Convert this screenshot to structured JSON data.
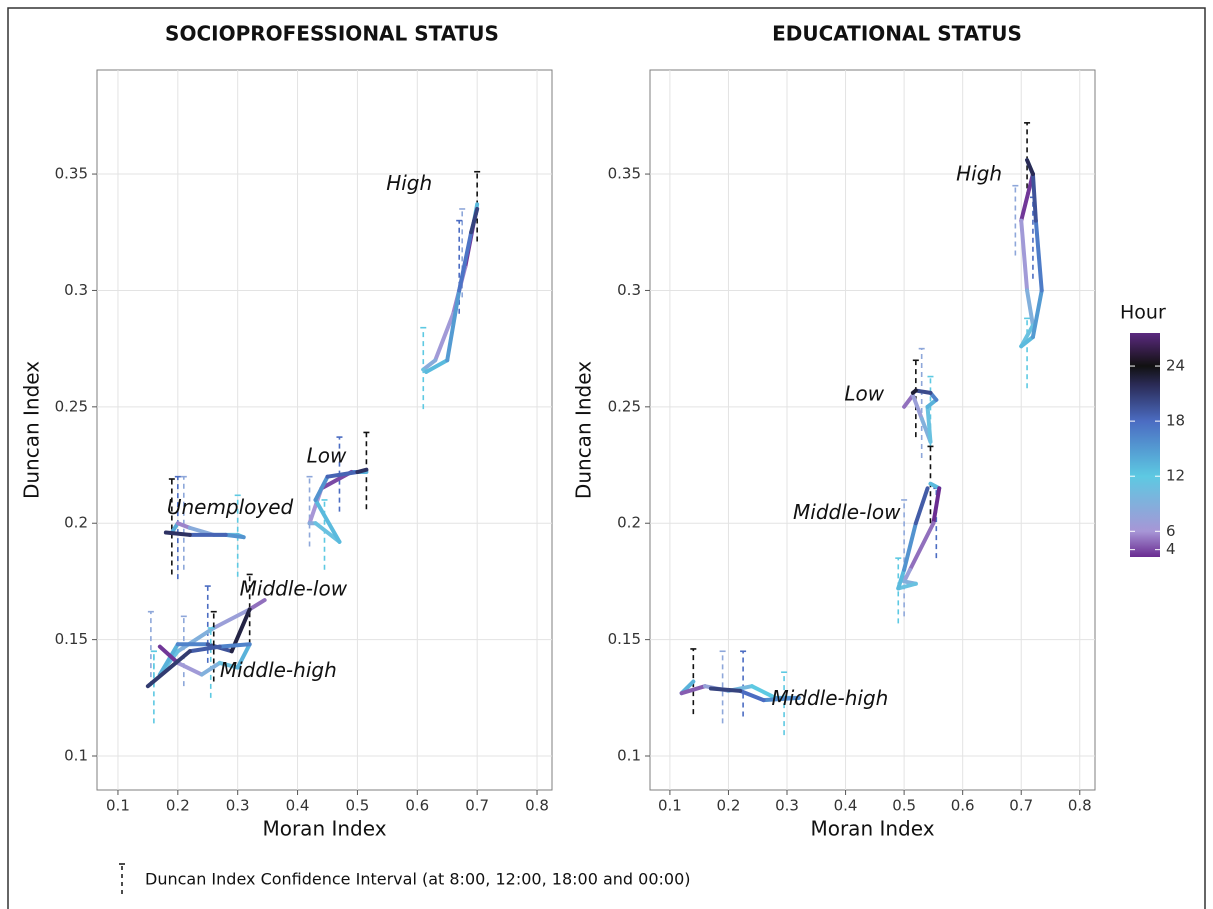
{
  "chart_data": [
    {
      "type": "line",
      "title": "SOCIOPROFESSIONAL STATUS",
      "xlabel": "Moran Index",
      "ylabel": "Duncan Index",
      "xlim": [
        0.065,
        0.825
      ],
      "ylim": [
        0.0854,
        0.3947
      ],
      "xticks": [
        0.1,
        0.2,
        0.3,
        0.4,
        0.5,
        0.6,
        0.7,
        0.8
      ],
      "yticks": [
        0.1,
        0.15,
        0.2,
        0.25,
        0.3,
        0.35
      ],
      "grid": true,
      "series": [
        {
          "name": "High",
          "x": [
            0.7,
            0.695,
            0.68,
            0.66,
            0.63,
            0.61,
            0.615,
            0.65,
            0.67,
            0.69,
            0.7
          ],
          "y": [
            0.337,
            0.33,
            0.31,
            0.29,
            0.27,
            0.266,
            0.265,
            0.27,
            0.3,
            0.325,
            0.335
          ],
          "hours": [
            24,
            2,
            5,
            6,
            7,
            10,
            12,
            14,
            16,
            19,
            22
          ],
          "ci": [
            {
              "x": 0.7,
              "low": 0.321,
              "high": 0.351,
              "hour": 24
            },
            {
              "x": 0.675,
              "low": 0.297,
              "high": 0.335,
              "hour": 8
            },
            {
              "x": 0.61,
              "low": 0.249,
              "high": 0.284,
              "hour": 12
            },
            {
              "x": 0.67,
              "low": 0.29,
              "high": 0.33,
              "hour": 18
            }
          ]
        },
        {
          "name": "Low",
          "x": [
            0.515,
            0.49,
            0.44,
            0.42,
            0.43,
            0.47,
            0.43,
            0.45,
            0.5,
            0.515
          ],
          "y": [
            0.222,
            0.222,
            0.215,
            0.2,
            0.2,
            0.192,
            0.21,
            0.22,
            0.222,
            0.223
          ],
          "hours": [
            24,
            3,
            5,
            7,
            10,
            12,
            14,
            17,
            20,
            23
          ],
          "ci": [
            {
              "x": 0.515,
              "low": 0.206,
              "high": 0.239,
              "hour": 24
            },
            {
              "x": 0.42,
              "low": 0.19,
              "high": 0.22,
              "hour": 8
            },
            {
              "x": 0.445,
              "low": 0.18,
              "high": 0.21,
              "hour": 12
            },
            {
              "x": 0.47,
              "low": 0.205,
              "high": 0.237,
              "hour": 18
            }
          ]
        },
        {
          "name": "Unemployed",
          "x": [
            0.19,
            0.2,
            0.22,
            0.26,
            0.3,
            0.31,
            0.28,
            0.22,
            0.18
          ],
          "y": [
            0.196,
            0.2,
            0.198,
            0.195,
            0.195,
            0.194,
            0.195,
            0.195,
            0.196
          ],
          "hours": [
            24,
            4,
            7,
            10,
            12,
            14,
            17,
            20,
            23
          ],
          "ci": [
            {
              "x": 0.19,
              "low": 0.178,
              "high": 0.219,
              "hour": 24
            },
            {
              "x": 0.21,
              "low": 0.18,
              "high": 0.22,
              "hour": 8
            },
            {
              "x": 0.3,
              "low": 0.177,
              "high": 0.212,
              "hour": 12
            },
            {
              "x": 0.2,
              "low": 0.176,
              "high": 0.22,
              "hour": 18
            }
          ]
        },
        {
          "name": "Middle-low",
          "x": [
            0.345,
            0.32,
            0.26,
            0.2,
            0.17,
            0.2,
            0.25,
            0.29,
            0.32
          ],
          "y": [
            0.167,
            0.163,
            0.155,
            0.145,
            0.135,
            0.148,
            0.148,
            0.145,
            0.163
          ],
          "hours": [
            4,
            6,
            8,
            10,
            12,
            15,
            18,
            21,
            24
          ],
          "ci": [
            {
              "x": 0.32,
              "low": 0.148,
              "high": 0.178,
              "hour": 24
            },
            {
              "x": 0.21,
              "low": 0.13,
              "high": 0.16,
              "hour": 8
            },
            {
              "x": 0.16,
              "low": 0.13,
              "high": 0.145,
              "hour": 12
            },
            {
              "x": 0.25,
              "low": 0.14,
              "high": 0.173,
              "hour": 18
            }
          ]
        },
        {
          "name": "Middle-high",
          "x": [
            0.17,
            0.2,
            0.24,
            0.27,
            0.3,
            0.32,
            0.27,
            0.22,
            0.15
          ],
          "y": [
            0.147,
            0.14,
            0.135,
            0.14,
            0.138,
            0.148,
            0.147,
            0.145,
            0.13
          ],
          "hours": [
            2,
            5,
            8,
            10,
            12,
            15,
            18,
            20,
            22
          ],
          "ci": [
            {
              "x": 0.16,
              "low": 0.114,
              "high": 0.145,
              "hour": 12
            },
            {
              "x": 0.26,
              "low": 0.132,
              "high": 0.162,
              "hour": 24
            },
            {
              "x": 0.155,
              "low": 0.13,
              "high": 0.162,
              "hour": 8
            },
            {
              "x": 0.255,
              "low": 0.125,
              "high": 0.155,
              "hour": 12
            }
          ]
        }
      ]
    },
    {
      "type": "line",
      "title": "EDUCATIONAL STATUS",
      "xlabel": "Moran Index",
      "ylabel": "Duncan Index",
      "xlim": [
        0.066,
        0.826
      ],
      "ylim": [
        0.0854,
        0.3947
      ],
      "xticks": [
        0.1,
        0.2,
        0.3,
        0.4,
        0.5,
        0.6,
        0.7,
        0.8
      ],
      "yticks": [
        0.1,
        0.15,
        0.2,
        0.25,
        0.3,
        0.35
      ],
      "grid": true,
      "series": [
        {
          "name": "High",
          "x": [
            0.71,
            0.72,
            0.7,
            0.71,
            0.72,
            0.7,
            0.72,
            0.735,
            0.725,
            0.72,
            0.71
          ],
          "y": [
            0.356,
            0.35,
            0.33,
            0.3,
            0.285,
            0.276,
            0.28,
            0.3,
            0.33,
            0.35,
            0.356
          ],
          "hours": [
            24,
            2,
            5,
            8,
            10,
            12,
            14,
            16,
            18,
            21,
            23
          ],
          "ci": [
            {
              "x": 0.71,
              "low": 0.34,
              "high": 0.372,
              "hour": 24
            },
            {
              "x": 0.69,
              "low": 0.315,
              "high": 0.345,
              "hour": 8
            },
            {
              "x": 0.71,
              "low": 0.258,
              "high": 0.288,
              "hour": 12
            },
            {
              "x": 0.72,
              "low": 0.305,
              "high": 0.34,
              "hour": 18
            }
          ]
        },
        {
          "name": "Low",
          "x": [
            0.5,
            0.515,
            0.53,
            0.545,
            0.54,
            0.555,
            0.545,
            0.52,
            0.515
          ],
          "y": [
            0.25,
            0.255,
            0.245,
            0.235,
            0.25,
            0.253,
            0.256,
            0.257,
            0.256
          ],
          "hours": [
            4,
            6,
            8,
            10,
            12,
            15,
            18,
            22,
            24
          ],
          "ci": [
            {
              "x": 0.52,
              "low": 0.237,
              "high": 0.27,
              "hour": 24
            },
            {
              "x": 0.53,
              "low": 0.228,
              "high": 0.275,
              "hour": 8
            },
            {
              "x": 0.545,
              "low": 0.233,
              "high": 0.263,
              "hour": 12
            }
          ]
        },
        {
          "name": "Middle-low",
          "x": [
            0.545,
            0.56,
            0.55,
            0.51,
            0.5,
            0.52,
            0.49,
            0.5,
            0.52,
            0.54
          ],
          "y": [
            0.217,
            0.215,
            0.2,
            0.18,
            0.175,
            0.174,
            0.172,
            0.18,
            0.2,
            0.215
          ],
          "hours": [
            24,
            2,
            4,
            6,
            8,
            10,
            12,
            14,
            17,
            21
          ],
          "ci": [
            {
              "x": 0.545,
              "low": 0.2,
              "high": 0.233,
              "hour": 24
            },
            {
              "x": 0.5,
              "low": 0.16,
              "high": 0.21,
              "hour": 8
            },
            {
              "x": 0.49,
              "low": 0.157,
              "high": 0.185,
              "hour": 12
            },
            {
              "x": 0.555,
              "low": 0.185,
              "high": 0.215,
              "hour": 18
            }
          ]
        },
        {
          "name": "Middle-high",
          "x": [
            0.14,
            0.12,
            0.16,
            0.2,
            0.24,
            0.28,
            0.32,
            0.26,
            0.22,
            0.17
          ],
          "y": [
            0.132,
            0.127,
            0.13,
            0.128,
            0.13,
            0.125,
            0.125,
            0.124,
            0.128,
            0.129
          ],
          "hours": [
            24,
            3,
            6,
            9,
            11,
            13,
            15,
            17,
            19,
            22
          ],
          "ci": [
            {
              "x": 0.14,
              "low": 0.118,
              "high": 0.146,
              "hour": 24
            },
            {
              "x": 0.19,
              "low": 0.114,
              "high": 0.145,
              "hour": 8
            },
            {
              "x": 0.295,
              "low": 0.109,
              "high": 0.136,
              "hour": 12
            },
            {
              "x": 0.225,
              "low": 0.117,
              "high": 0.145,
              "hour": 18
            }
          ]
        }
      ]
    }
  ],
  "colorbar": {
    "title": "Hour",
    "lim": [
      3.2,
      27.6
    ],
    "ticks": [
      4,
      6,
      12,
      18,
      24
    ],
    "stops": [
      {
        "value": 3.2,
        "color": "#6a2c91"
      },
      {
        "value": 6,
        "color": "#a796d6"
      },
      {
        "value": 12,
        "color": "#5dc9e2"
      },
      {
        "value": 18,
        "color": "#4b6cc2"
      },
      {
        "value": 22,
        "color": "#2a2a55"
      },
      {
        "value": 24,
        "color": "#111111"
      },
      {
        "value": 27.6,
        "color": "#5b2a80"
      }
    ]
  },
  "footnote": "Duncan Index Confidence Interval (at 8:00, 12:00, 18:00 and 00:00)"
}
